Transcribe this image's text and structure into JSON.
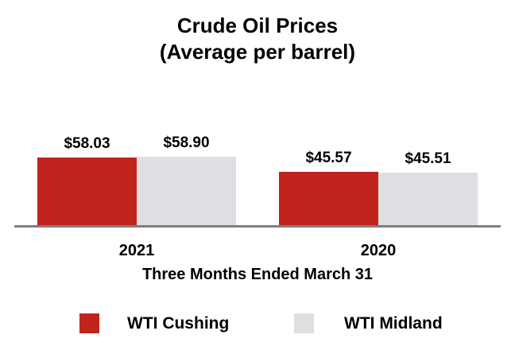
{
  "chart_data": {
    "type": "bar",
    "title": "Crude Oil Prices",
    "subtitle": "(Average per barrel)",
    "categories": [
      "2021",
      "2020"
    ],
    "series": [
      {
        "name": "WTI Cushing",
        "color": "#c0241c",
        "values": [
          58.03,
          45.57
        ],
        "labels": [
          "$58.03",
          "$45.57"
        ]
      },
      {
        "name": "WTI Midland",
        "color": "#dedfe2",
        "values": [
          58.9,
          45.51
        ],
        "labels": [
          "$58.90",
          "$45.51"
        ]
      }
    ],
    "xlabel": "Three Months Ended March 31",
    "ylabel": "",
    "ylim": [
      0,
      60
    ],
    "grid": false,
    "legend_position": "bottom",
    "axis_line_color": "#7f7f7f",
    "text_color": "#000000",
    "background": "#ffffff"
  }
}
